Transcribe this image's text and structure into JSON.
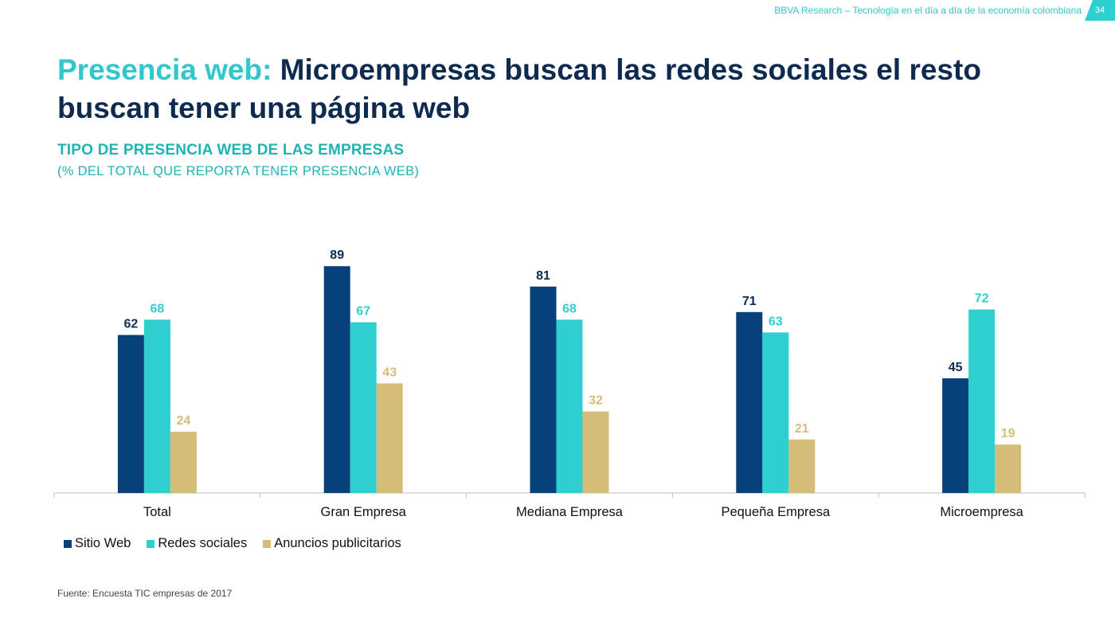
{
  "header": {
    "text": "BBVA Research – Tecnología en el día a día de la economía colombiana",
    "page_number": "34"
  },
  "slide": {
    "title_highlight": "Presencia web:",
    "title_rest": " Microempresas buscan las redes sociales  el resto buscan tener una página web",
    "subtitle": "TIPO DE PRESENCIA WEB DE LAS EMPRESAS",
    "subnote": "(% DEL TOTAL QUE REPORTA TENER PRESENCIA WEB)",
    "source": "Fuente: Encuesta TIC empresas de 2017"
  },
  "colors": {
    "dark_blue": "#07417b",
    "teal": "#2fcfcf",
    "gold": "#d5bd77",
    "title_dark": "#0e2a4f",
    "accent": "#33c6cb"
  },
  "chart_data": {
    "type": "bar",
    "title": "TIPO DE PRESENCIA WEB DE LAS EMPRESAS",
    "ylabel": "",
    "xlabel": "",
    "ylim": [
      0,
      100
    ],
    "grid": false,
    "legend_position": "bottom-left",
    "categories": [
      "Total",
      "Gran Empresa",
      "Mediana Empresa",
      "Pequeña Empresa",
      "Microempresa"
    ],
    "series": [
      {
        "name": "Sitio Web",
        "color": "#07417b",
        "label_color": "#0e2a4f",
        "values": [
          62,
          89,
          81,
          71,
          45
        ]
      },
      {
        "name": "Redes sociales",
        "color": "#2fcfcf",
        "label_color": "#2fcfcf",
        "values": [
          68,
          67,
          68,
          63,
          72
        ]
      },
      {
        "name": "Anuncios publicitarios",
        "color": "#d5bd77",
        "label_color": "#d5bd77",
        "values": [
          24,
          43,
          32,
          21,
          19
        ]
      }
    ]
  }
}
